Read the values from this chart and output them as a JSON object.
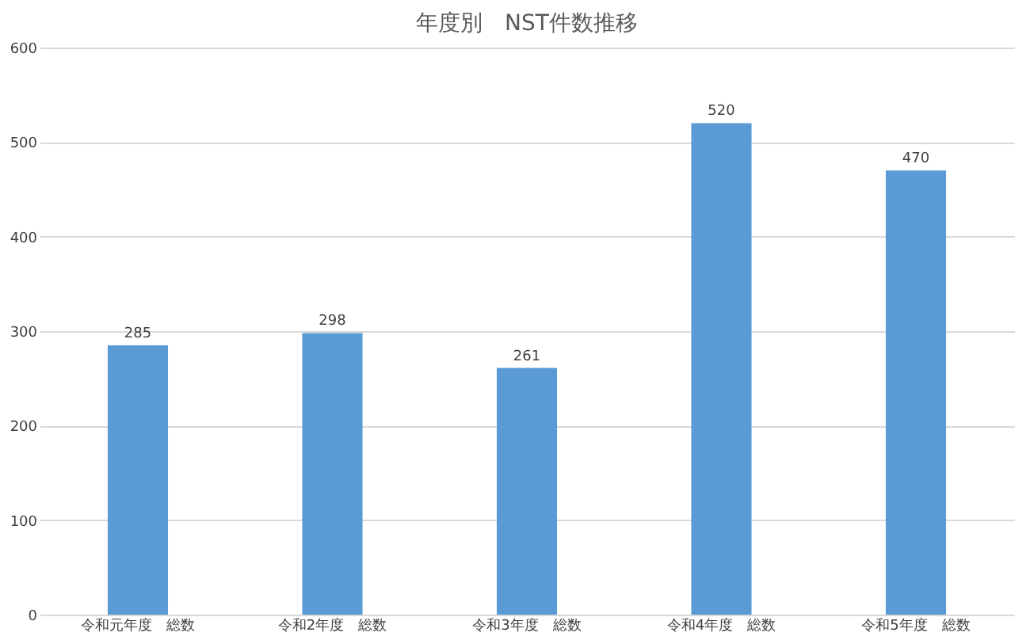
{
  "chart_data": {
    "type": "bar",
    "title": "年度別　NST件数推移",
    "categories": [
      "令和元年度　総数",
      "令和2年度　総数",
      "令和3年度　総数",
      "令和4年度　総数",
      "令和5年度　総数"
    ],
    "values": [
      285,
      298,
      261,
      520,
      470
    ],
    "color": "#5b9bd5",
    "ylim": [
      0,
      600
    ],
    "yticks": [
      0,
      100,
      200,
      300,
      400,
      500,
      600
    ],
    "grid": "y",
    "data_labels": true
  }
}
